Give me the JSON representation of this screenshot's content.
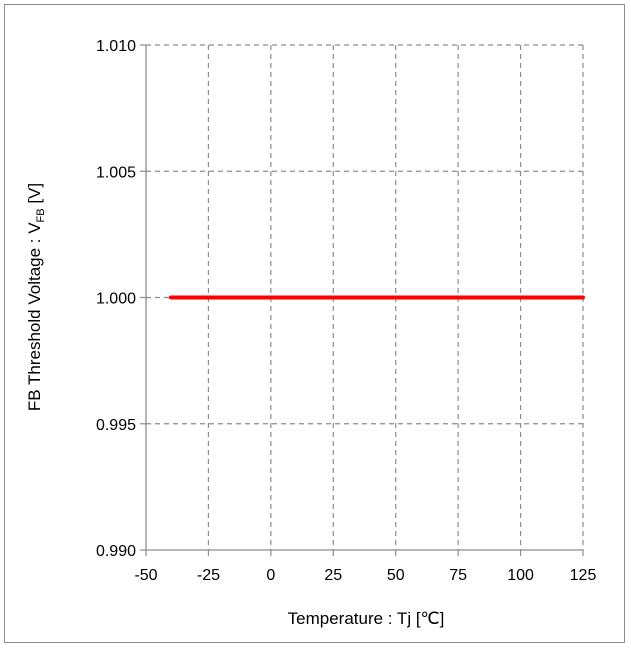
{
  "chart_data": {
    "type": "line",
    "xlabel": "Temperature : Tj [℃]",
    "ylabel": {
      "prefix": "FB Threshold Voltage : V",
      "subscript": "FB",
      "suffix": " [V]"
    },
    "xlim": [
      -50,
      125
    ],
    "ylim": [
      0.99,
      1.01
    ],
    "x_ticks": [
      "-50",
      "-25",
      "0",
      "25",
      "50",
      "75",
      "100",
      "125"
    ],
    "y_ticks": [
      "0.990",
      "0.995",
      "1.000",
      "1.005",
      "1.010"
    ],
    "grid": true,
    "grid_style": "dashed",
    "legend": "none",
    "series": [
      {
        "color": "#ff0000",
        "x": [
          -40,
          125
        ],
        "y": [
          1.0,
          1.0
        ]
      }
    ]
  }
}
